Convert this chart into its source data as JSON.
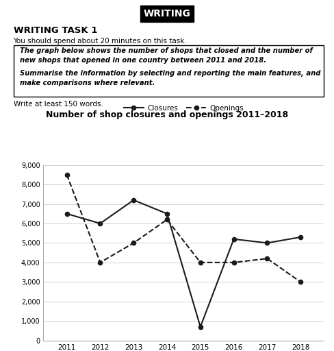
{
  "years": [
    2011,
    2012,
    2013,
    2014,
    2015,
    2016,
    2017,
    2018
  ],
  "closures": [
    6500,
    6000,
    7200,
    6500,
    700,
    5200,
    5000,
    5300
  ],
  "openings": [
    8500,
    4000,
    5000,
    6200,
    4000,
    4000,
    4200,
    3000
  ],
  "title": "Number of shop closures and openings 2011–2018",
  "legend_closures": "Closures",
  "legend_openings": "Openings",
  "ylim": [
    0,
    9000
  ],
  "yticks": [
    0,
    1000,
    2000,
    3000,
    4000,
    5000,
    6000,
    7000,
    8000,
    9000
  ],
  "header_text": "WRITING",
  "task_title": "WRITING TASK 1",
  "task_subtitle": "You should spend about 20 minutes on this task.",
  "box_line1": "The graph below shows the number of shops that closed and the number of",
  "box_line2": "new shops that opened in one country between 2011 and 2018.",
  "box_line3": "Summarise the information by selecting and reporting the main features, and",
  "box_line4": "make comparisons where relevant.",
  "footer_text": "Write at least 150 words.",
  "bg_color": "#ffffff",
  "line_color": "#1a1a1a",
  "grid_color": "#d0d0d0"
}
